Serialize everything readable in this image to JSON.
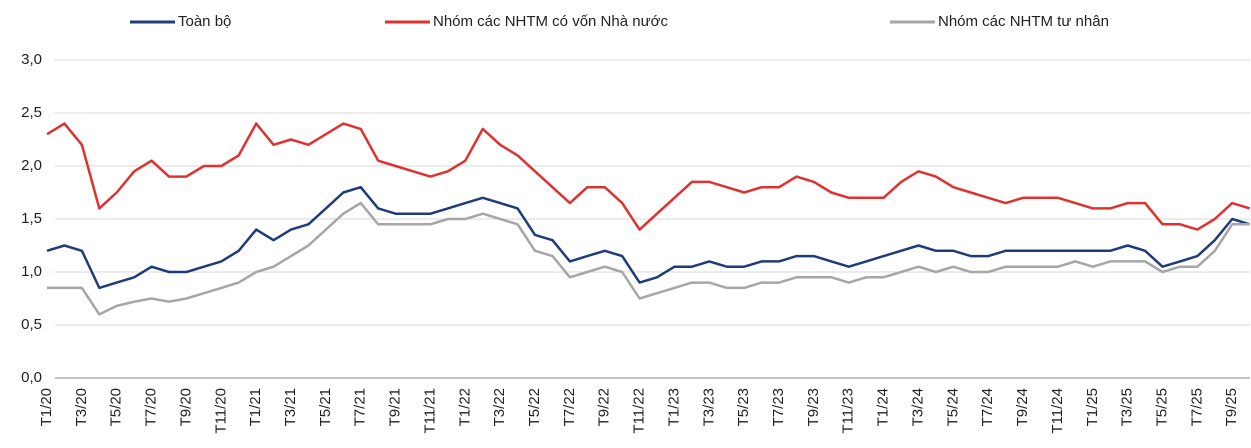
{
  "chart_data": {
    "type": "line",
    "categories": [
      "T1/20",
      null,
      "T3/20",
      null,
      "T5/20",
      null,
      "T7/20",
      null,
      "T9/20",
      null,
      "T11/20",
      null,
      "T1/21",
      null,
      "T3/21",
      null,
      "T5/21",
      null,
      "T7/21",
      null,
      "T9/21",
      null,
      "T11/21",
      null,
      "T1/22",
      null,
      "T3/22",
      null,
      "T5/22",
      null,
      "T7/22",
      null,
      "T9/22",
      null,
      "T11/22",
      null,
      "T1/23",
      null,
      "T3/23",
      null,
      "T5/23",
      null,
      "T7/23",
      null,
      "T9/23",
      null,
      "T11/23",
      null,
      "T1/24",
      null,
      "T3/24",
      null,
      "T5/24",
      null,
      "T7/24",
      null,
      "T9/24",
      null,
      "T11/24",
      null,
      "T1/25",
      null,
      "T3/25",
      null,
      "T5/25",
      null,
      "T7/25",
      null,
      "T9/25",
      null
    ],
    "series": [
      {
        "name": "Toàn bộ",
        "color": "#1f3c7a",
        "values": [
          1.2,
          1.25,
          1.2,
          0.85,
          0.9,
          0.95,
          1.05,
          1.0,
          1.0,
          1.05,
          1.1,
          1.2,
          1.4,
          1.3,
          1.4,
          1.45,
          1.6,
          1.75,
          1.8,
          1.6,
          1.55,
          1.55,
          1.55,
          1.6,
          1.65,
          1.7,
          1.65,
          1.6,
          1.35,
          1.3,
          1.1,
          1.15,
          1.2,
          1.15,
          0.9,
          0.95,
          1.05,
          1.05,
          1.1,
          1.05,
          1.05,
          1.1,
          1.1,
          1.15,
          1.15,
          1.1,
          1.05,
          1.1,
          1.15,
          1.2,
          1.25,
          1.2,
          1.2,
          1.15,
          1.15,
          1.2,
          1.2,
          1.2,
          1.2,
          1.2,
          1.2,
          1.2,
          1.25,
          1.2,
          1.05,
          1.1,
          1.15,
          1.3,
          1.5,
          1.45
        ]
      },
      {
        "name": "Nhóm các NHTM có vốn Nhà nước",
        "color": "#e03131",
        "values": [
          2.3,
          2.4,
          2.2,
          1.6,
          1.75,
          1.95,
          2.05,
          1.9,
          1.9,
          2.0,
          2.0,
          2.1,
          2.4,
          2.2,
          2.25,
          2.2,
          2.3,
          2.4,
          2.35,
          2.05,
          2.0,
          1.95,
          1.9,
          1.95,
          2.05,
          2.35,
          2.2,
          2.1,
          1.95,
          1.8,
          1.65,
          1.8,
          1.8,
          1.65,
          1.4,
          1.55,
          1.7,
          1.85,
          1.85,
          1.8,
          1.75,
          1.8,
          1.8,
          1.9,
          1.85,
          1.75,
          1.7,
          1.7,
          1.7,
          1.85,
          1.95,
          1.9,
          1.8,
          1.75,
          1.7,
          1.65,
          1.7,
          1.7,
          1.7,
          1.65,
          1.6,
          1.6,
          1.65,
          1.65,
          1.45,
          1.45,
          1.4,
          1.5,
          1.65,
          1.6
        ]
      },
      {
        "name": "Nhóm các NHTM tư nhân",
        "color": "#a6a6a6",
        "values": [
          0.85,
          0.85,
          0.85,
          0.6,
          0.68,
          0.72,
          0.75,
          0.72,
          0.75,
          0.8,
          0.85,
          0.9,
          1.0,
          1.05,
          1.15,
          1.25,
          1.4,
          1.55,
          1.65,
          1.45,
          1.45,
          1.45,
          1.45,
          1.5,
          1.5,
          1.55,
          1.5,
          1.45,
          1.2,
          1.15,
          0.95,
          1.0,
          1.05,
          1.0,
          0.75,
          0.8,
          0.85,
          0.9,
          0.9,
          0.85,
          0.85,
          0.9,
          0.9,
          0.95,
          0.95,
          0.95,
          0.9,
          0.95,
          0.95,
          1.0,
          1.05,
          1.0,
          1.05,
          1.0,
          1.0,
          1.05,
          1.05,
          1.05,
          1.05,
          1.1,
          1.05,
          1.1,
          1.1,
          1.1,
          1.0,
          1.05,
          1.05,
          1.2,
          1.45,
          1.45
        ]
      }
    ],
    "ylim": [
      0,
      3
    ],
    "yticks": [
      {
        "value": 0,
        "label": "0,0"
      },
      {
        "value": 0.5,
        "label": "0,5"
      },
      {
        "value": 1,
        "label": "1,0"
      },
      {
        "value": 1.5,
        "label": "1,5"
      },
      {
        "value": 2,
        "label": "2,0"
      },
      {
        "value": 2.5,
        "label": "2,5"
      },
      {
        "value": 3,
        "label": "3,0"
      }
    ],
    "grid": true,
    "legend": "top"
  }
}
